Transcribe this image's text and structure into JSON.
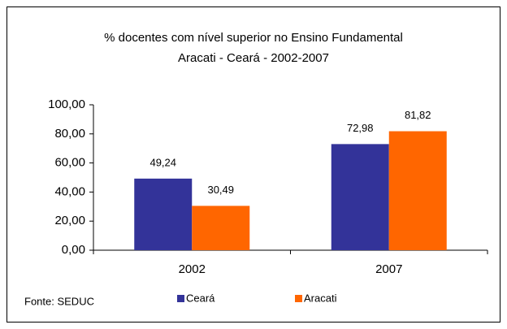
{
  "chart_data": {
    "type": "bar",
    "title": [
      "% docentes com nível superior no  Ensino Fundamental",
      "Aracati - Ceará - 2002-2007"
    ],
    "categories": [
      "2002",
      "2007"
    ],
    "series": [
      {
        "name": "Ceará",
        "color": "#333399",
        "values": [
          49.24,
          72.98
        ],
        "value_labels": [
          "49,24",
          "72,98"
        ]
      },
      {
        "name": "Aracati",
        "color": "#ff6600",
        "values": [
          30.49,
          81.82
        ],
        "value_labels": [
          "30,49",
          "81,82"
        ]
      }
    ],
    "ylim": [
      0,
      100
    ],
    "yticks": [
      {
        "value": 0,
        "label": "0,00"
      },
      {
        "value": 20,
        "label": "20,00"
      },
      {
        "value": 40,
        "label": "40,00"
      },
      {
        "value": 60,
        "label": "60,00"
      },
      {
        "value": 80,
        "label": "80,00"
      },
      {
        "value": 100,
        "label": "100,00"
      }
    ],
    "grid": false,
    "legend": "bottom",
    "source": "Fonte: SEDUC"
  }
}
